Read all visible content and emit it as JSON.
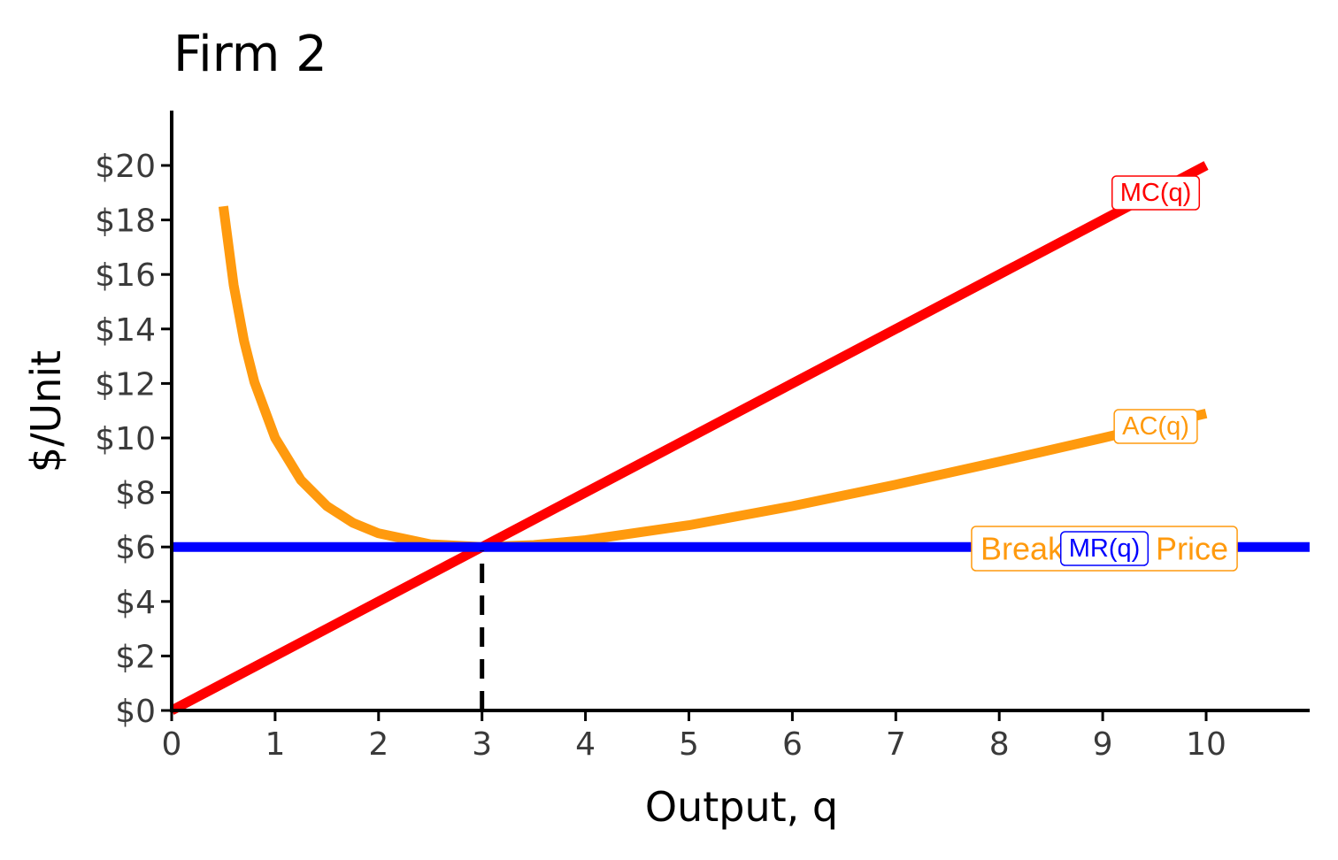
{
  "chart_data": {
    "type": "line",
    "title": "Firm 2",
    "xlabel": "Output, q",
    "ylabel": "$/Unit",
    "xlim": [
      0,
      11
    ],
    "ylim": [
      0,
      22
    ],
    "x_ticks": [
      0,
      1,
      2,
      3,
      4,
      5,
      6,
      7,
      8,
      9,
      10
    ],
    "y_ticks": [
      0,
      2,
      4,
      6,
      8,
      10,
      12,
      14,
      16,
      18,
      20
    ],
    "y_tick_labels": [
      "$0",
      "$2",
      "$4",
      "$6",
      "$8",
      "$10",
      "$12",
      "$14",
      "$16",
      "$18",
      "$20"
    ],
    "grid": false,
    "series": [
      {
        "name": "MC(q)",
        "color": "#ff0000",
        "x": [
          0,
          10
        ],
        "y": [
          0,
          20
        ]
      },
      {
        "name": "AC(q)",
        "color": "#ff9a0e",
        "x": [
          0.5,
          0.6,
          0.7,
          0.8,
          1,
          1.25,
          1.5,
          1.75,
          2,
          2.5,
          3,
          3.5,
          4,
          5,
          6,
          7,
          8,
          9,
          10
        ],
        "y": [
          18.5,
          15.6,
          13.56,
          12.05,
          10,
          8.45,
          7.5,
          6.89,
          6.5,
          6.1,
          6.0,
          6.07,
          6.25,
          6.8,
          7.5,
          8.29,
          9.13,
          10.0,
          10.9
        ]
      },
      {
        "name": "MR(q)",
        "color": "#0000ff",
        "x": [
          0,
          11
        ],
        "y": [
          6,
          6
        ]
      }
    ],
    "annotations": [
      {
        "text": "Break-Even Price",
        "color": "#ff9a0e",
        "x": 9.1,
        "y": 6
      }
    ],
    "reference_lines": [
      {
        "type": "vertical-dashed",
        "x": 3,
        "y_from": 0,
        "y_to": 6,
        "color": "#000000"
      }
    ]
  }
}
